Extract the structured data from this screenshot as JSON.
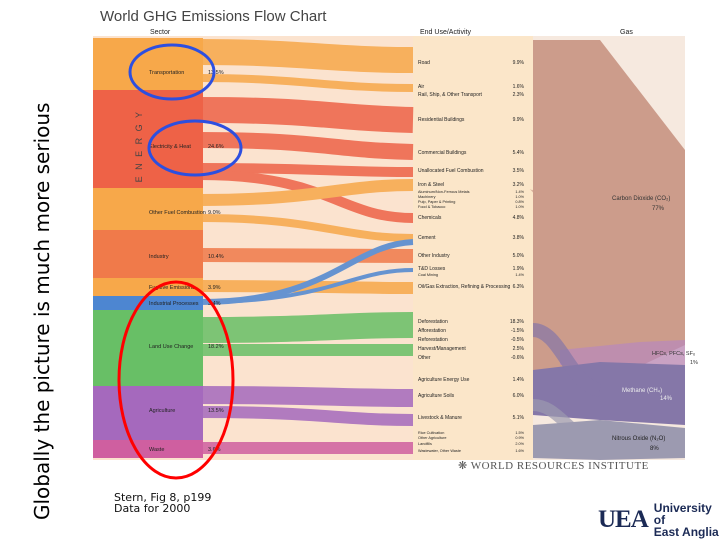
{
  "slide": {
    "side_title": "Globally the picture is much more serious",
    "chart_title": "World GHG Emissions Flow Chart",
    "caption_lines": [
      "Stern, Fig 8, p199",
      "Data for 2000"
    ],
    "wri_text": "WORLD RESOURCES INSTITUTE",
    "uea_mark": "UEA",
    "uea_name_lines": [
      "University of",
      "East Anglia"
    ]
  },
  "headers": {
    "sector": "Sector",
    "end_use": "End Use/Activity",
    "gas": "Gas"
  },
  "energy_label": "E N E R G Y",
  "colors": {
    "transport": "#f7a84a",
    "electricity": "#ee6247",
    "other_fuel": "#f7a84a",
    "industry": "#f07a4a",
    "fugitive": "#f7a84a",
    "industrial_processes": "#4d86d1",
    "land_use": "#68bf66",
    "agriculture": "#a569bd",
    "waste": "#cf5fa0",
    "co2": "#cc9c8b",
    "hfc": "#b98ab9",
    "methane": "#8577a8",
    "nitrous": "#9c9ab0",
    "highlight_circle": "#2d4fe0",
    "red_oval": "#ff0000"
  },
  "sectors": [
    {
      "name": "Transportation",
      "pct": "13.5%"
    },
    {
      "name": "Electricity & Heat",
      "pct": "24.6%"
    },
    {
      "name": "Other Fuel Combustion",
      "pct": "9.0%"
    },
    {
      "name": "Industry",
      "pct": "10.4%"
    },
    {
      "name": "Fugitive Emissions",
      "pct": "3.9%"
    },
    {
      "name": "Industrial Processes",
      "pct": "3.4%"
    },
    {
      "name": "Land Use Change",
      "pct": "18.2%"
    },
    {
      "name": "Agriculture",
      "pct": "13.5%"
    },
    {
      "name": "Waste",
      "pct": "3.6%"
    }
  ],
  "end_uses": [
    {
      "name": "Road",
      "pct": "9.9%"
    },
    {
      "name": "Air",
      "pct": "1.6%"
    },
    {
      "name": "Rail, Ship, & Other Transport",
      "pct": "2.3%"
    },
    {
      "name": "Residential Buildings",
      "pct": "9.9%"
    },
    {
      "name": "Commercial Buildings",
      "pct": "5.4%"
    },
    {
      "name": "Unallocated Fuel Combustion",
      "pct": "3.5%"
    },
    {
      "name": "Iron & Steel",
      "pct": "3.2%"
    },
    {
      "name": "Aluminum/Non-Ferrous Metals",
      "pct": "1.4%"
    },
    {
      "name": "Machinery",
      "pct": "1.0%"
    },
    {
      "name": "Pulp, Paper & Printing",
      "pct": "0.8%"
    },
    {
      "name": "Food & Tobacco",
      "pct": "1.0%"
    },
    {
      "name": "Chemicals",
      "pct": "4.8%"
    },
    {
      "name": "Cement",
      "pct": "3.8%"
    },
    {
      "name": "Other Industry",
      "pct": "5.0%"
    },
    {
      "name": "T&D Losses",
      "pct": "1.9%"
    },
    {
      "name": "Coal Mining",
      "pct": "1.4%"
    },
    {
      "name": "Oil/Gas Extraction, Refining & Processing",
      "pct": "6.3%"
    },
    {
      "name": "Deforestation",
      "pct": "18.3%"
    },
    {
      "name": "Afforestation",
      "pct": "-1.5%"
    },
    {
      "name": "Reforestation",
      "pct": "-0.5%"
    },
    {
      "name": "Harvest/Management",
      "pct": "2.5%"
    },
    {
      "name": "Other",
      "pct": "-0.6%"
    },
    {
      "name": "Agriculture Energy Use",
      "pct": "1.4%"
    },
    {
      "name": "Agriculture Soils",
      "pct": "6.0%"
    },
    {
      "name": "Livestock & Manure",
      "pct": "5.1%"
    },
    {
      "name": "Rice Cultivation",
      "pct": "1.5%"
    },
    {
      "name": "Other Agriculture",
      "pct": "0.9%"
    },
    {
      "name": "Landfills",
      "pct": "2.0%"
    },
    {
      "name": "Wastewater, Other Waste",
      "pct": "1.6%"
    }
  ],
  "gases": [
    {
      "name": "Carbon Dioxide (CO₂)",
      "pct": "77%"
    },
    {
      "name": "HFCs, PFCs, SF₆",
      "pct": "1%"
    },
    {
      "name": "Methane (CH₄)",
      "pct": "14%"
    },
    {
      "name": "Nitrous Oxide (N₂O)",
      "pct": "8%"
    }
  ]
}
